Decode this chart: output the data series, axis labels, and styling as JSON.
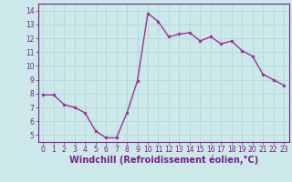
{
  "x": [
    0,
    1,
    2,
    3,
    4,
    5,
    6,
    7,
    8,
    9,
    10,
    11,
    12,
    13,
    14,
    15,
    16,
    17,
    18,
    19,
    20,
    21,
    22,
    23
  ],
  "y": [
    7.9,
    7.9,
    7.2,
    7.0,
    6.6,
    5.3,
    4.8,
    4.8,
    6.6,
    8.9,
    13.8,
    13.2,
    12.1,
    12.3,
    12.4,
    11.8,
    12.1,
    11.6,
    11.8,
    11.1,
    10.7,
    9.4,
    9.0,
    8.6
  ],
  "line_color": "#993399",
  "marker": "o",
  "marker_size": 2.0,
  "line_width": 1.0,
  "bg_color": "#cce8e8",
  "grid_color": "#b0d8d8",
  "xlabel": "Windchill (Refroidissement éolien,°C)",
  "xlim": [
    -0.5,
    23.5
  ],
  "ylim": [
    4.5,
    14.5
  ],
  "yticks": [
    5,
    6,
    7,
    8,
    9,
    10,
    11,
    12,
    13,
    14
  ],
  "xticks": [
    0,
    1,
    2,
    3,
    4,
    5,
    6,
    7,
    8,
    9,
    10,
    11,
    12,
    13,
    14,
    15,
    16,
    17,
    18,
    19,
    20,
    21,
    22,
    23
  ],
  "tick_fontsize": 5.5,
  "xlabel_fontsize": 7.0,
  "tick_color": "#7a1f8a",
  "spine_color": "#7a1f8a",
  "xlabel_color": "#7a1f8a"
}
